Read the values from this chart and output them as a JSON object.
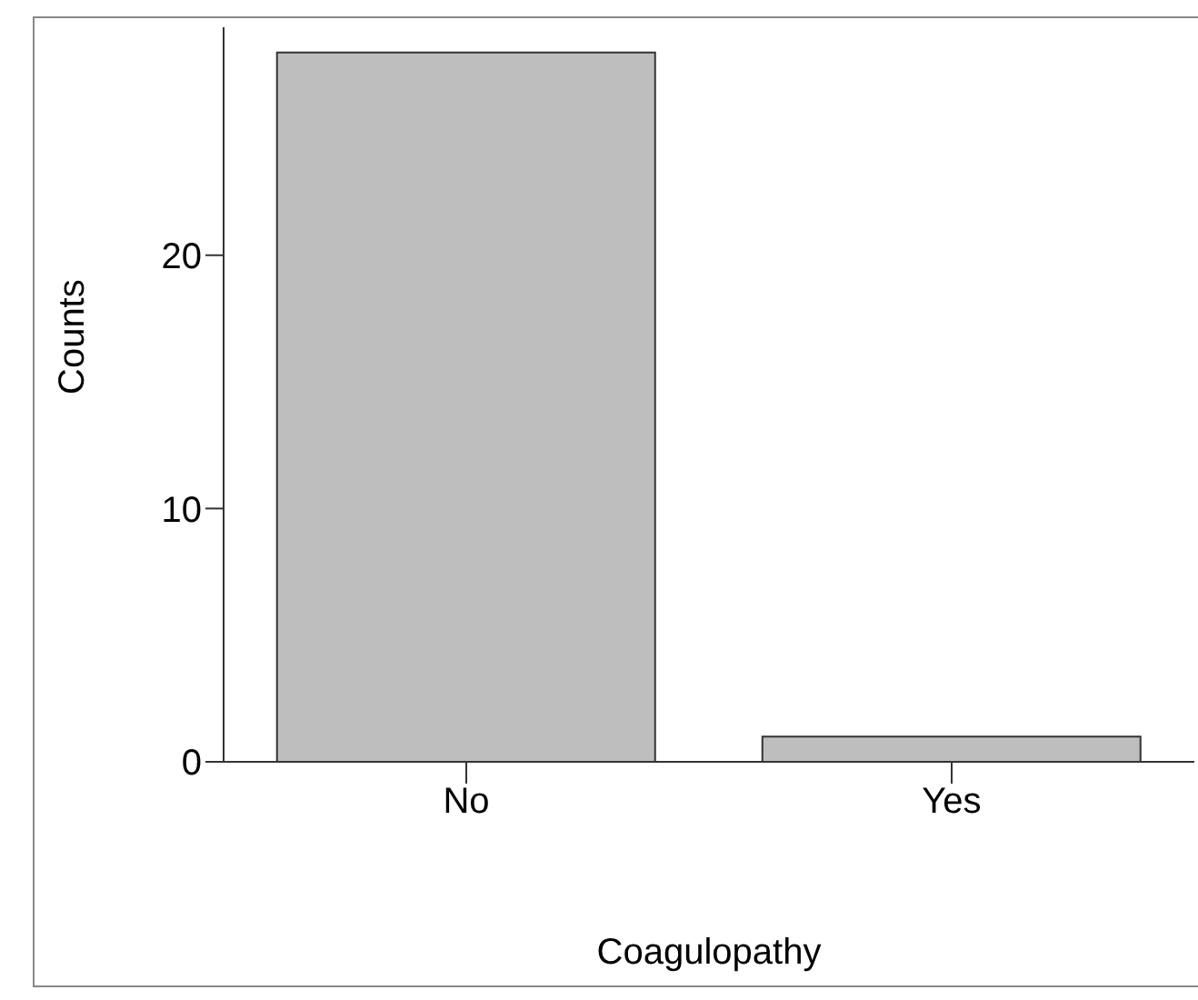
{
  "chart_data": {
    "type": "bar",
    "xlabel": "Coagulopathy",
    "ylabel": "Counts",
    "categories": [
      "No",
      "Yes"
    ],
    "values": [
      28,
      1
    ],
    "color": "#bebebe",
    "ylim": [
      0,
      29
    ],
    "yticks": [
      0,
      10,
      20
    ],
    "grid": false
  }
}
